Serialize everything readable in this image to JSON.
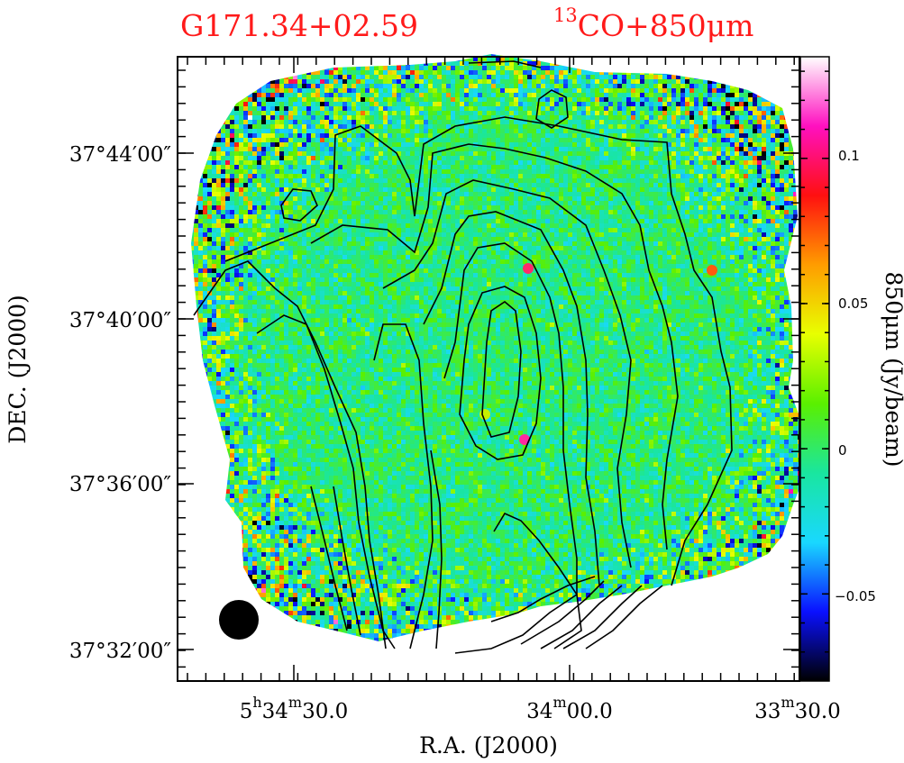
{
  "chart_data": {
    "type": "heatmap",
    "title_left": "G171.34+02.59",
    "title_right_sup": "13",
    "title_right": "CO+850μm",
    "xlabel": "R.A.  (J2000)",
    "ylabel": "DEC.  (J2000)",
    "x_ticks": [
      {
        "h": "5",
        "m": "34",
        "s": "30.0"
      },
      {
        "h": "",
        "m": "34",
        "s": "00.0"
      },
      {
        "h": "",
        "m": "33",
        "s": "30.0"
      }
    ],
    "y_ticks": [
      "37°44′00″",
      "37°40′00″",
      "37°36′00″",
      "37°32′00″"
    ],
    "colorbar": {
      "label": "850μm  (Jy/beam)",
      "min": -0.08,
      "max": 0.135,
      "ticks": [
        "0.1",
        "0.05",
        "0",
        "−0.05"
      ],
      "tick_values": [
        0.1,
        0.05,
        0,
        -0.05
      ]
    },
    "colormap": [
      "#000000",
      "#0a10ff",
      "#19d8ff",
      "#19e6a0",
      "#5af000",
      "#e8ff00",
      "#ff9c00",
      "#ff1010",
      "#ff10c0",
      "#ffffff"
    ],
    "beam": "filled circle, bottom-left",
    "contours": "13CO integrated intensity, black lines",
    "compact_sources": "3 sources near 37°41′, 37°38′ and west edge",
    "colors": {
      "title": "#ff1a1a",
      "contour": "#000000",
      "beam": "#000000"
    }
  }
}
